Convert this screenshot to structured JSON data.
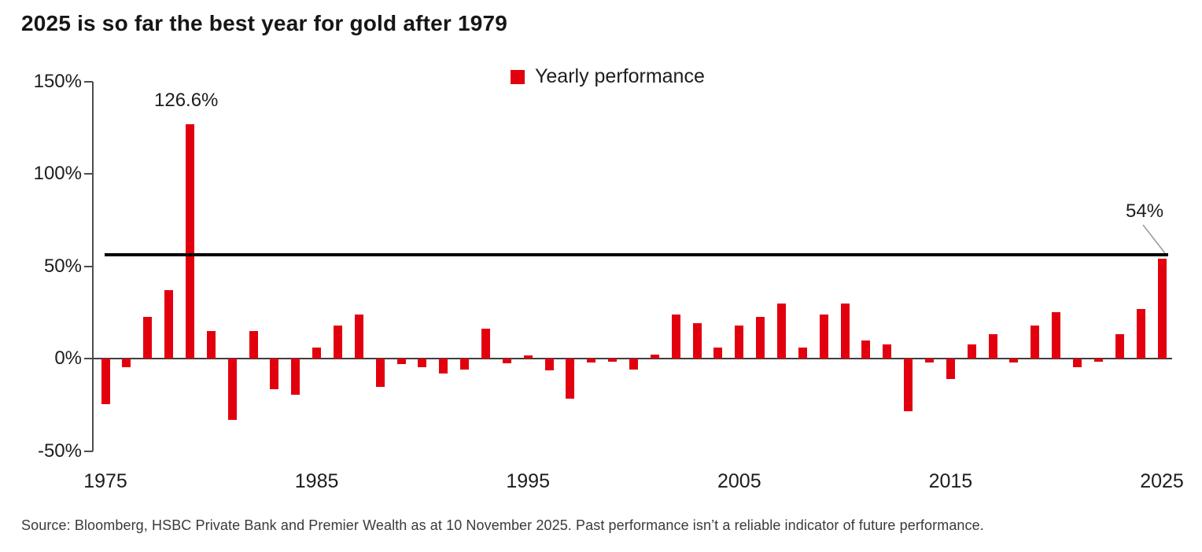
{
  "title": "2025 is so far the best year for gold after 1979",
  "legend": {
    "label": "Yearly performance",
    "swatch_color": "#e2000f"
  },
  "annotations": {
    "peak_label": "126.6%",
    "latest_label": "54%"
  },
  "source_note": "Source: Bloomberg, HSBC Private Bank and Premier Wealth as at 10 November 2025. Past performance isn’t a reliable indicator of future performance.",
  "colors": {
    "bar_red": "#e2000f",
    "axis_gray": "#4d4d4d",
    "reference_black": "#000000",
    "pointer_gray": "#999999"
  },
  "chart_data": {
    "type": "bar",
    "title": "2025 is so far the best year for gold after 1979",
    "series_name": "Yearly performance",
    "bar_color": "#e2000f",
    "xlabel": "",
    "ylabel": "",
    "ylim": [
      -50,
      150
    ],
    "grid": false,
    "legend_position": "top-center",
    "x": [
      1975,
      1976,
      1977,
      1978,
      1979,
      1980,
      1981,
      1982,
      1983,
      1984,
      1985,
      1986,
      1987,
      1988,
      1989,
      1990,
      1991,
      1992,
      1993,
      1994,
      1995,
      1996,
      1997,
      1998,
      1999,
      2000,
      2001,
      2002,
      2003,
      2004,
      2005,
      2006,
      2007,
      2008,
      2009,
      2010,
      2011,
      2012,
      2013,
      2014,
      2015,
      2016,
      2017,
      2018,
      2019,
      2020,
      2021,
      2022,
      2023,
      2024,
      2025
    ],
    "values": [
      -24.5,
      -4.5,
      22.5,
      37,
      126.6,
      15,
      -33,
      15,
      -16.5,
      -19.5,
      6,
      18,
      24,
      -15.5,
      -3,
      -4.5,
      -8,
      -6,
      16,
      -2.5,
      1.5,
      -6.5,
      -21.5,
      -2,
      -1.5,
      -6,
      2,
      24,
      19,
      6,
      18,
      22.5,
      30,
      6,
      24,
      30,
      10,
      7.5,
      -28.5,
      -2,
      -11,
      7.5,
      13,
      -2,
      18,
      25,
      -4.5,
      -1.5,
      13,
      27,
      54
    ],
    "y_ticks": [
      {
        "value": 150,
        "label": "150%"
      },
      {
        "value": 100,
        "label": "100%"
      },
      {
        "value": 50,
        "label": "50%"
      },
      {
        "value": 0,
        "label": "0%"
      },
      {
        "value": -50,
        "label": "-50%"
      }
    ],
    "x_ticks": [
      {
        "value": 1975,
        "label": "1975"
      },
      {
        "value": 1985,
        "label": "1985"
      },
      {
        "value": 1995,
        "label": "1995"
      },
      {
        "value": 2005,
        "label": "2005"
      },
      {
        "value": 2015,
        "label": "2015"
      },
      {
        "value": 2025,
        "label": "2025"
      }
    ],
    "reference_line": {
      "value": 56,
      "color": "#000000"
    },
    "point_annotations": [
      {
        "year": 1979,
        "text": "126.6%"
      },
      {
        "year": 2025,
        "text": "54%"
      }
    ]
  }
}
